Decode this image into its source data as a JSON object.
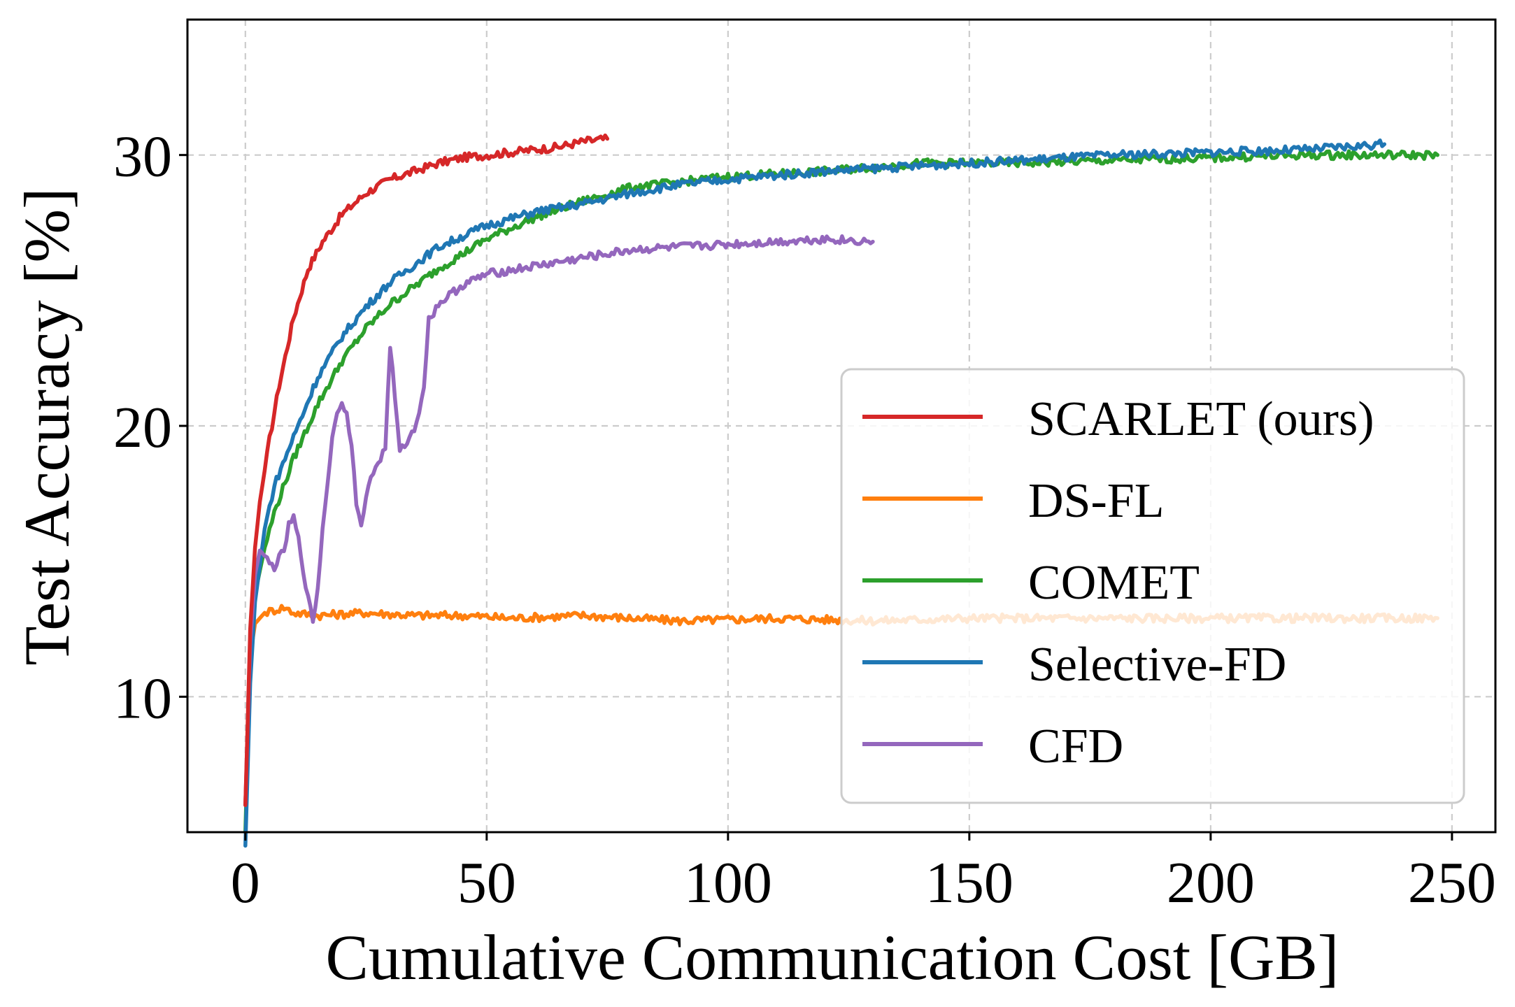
{
  "chart_data": {
    "type": "line",
    "xlabel": "Cumulative Communication Cost [GB]",
    "ylabel": "Test Accuracy [%]",
    "xlim": [
      -12,
      259
    ],
    "ylim": [
      5,
      35
    ],
    "xticks": [
      0,
      50,
      100,
      150,
      200,
      250
    ],
    "yticks": [
      10,
      20,
      30
    ],
    "grid": true,
    "legend": "lower-right",
    "series": [
      {
        "name": "SCARLET (ours)",
        "color": "#d62728",
        "x": [
          0,
          1,
          2,
          3,
          5,
          7,
          10,
          13,
          16,
          20,
          25,
          30,
          35,
          40,
          45,
          50,
          55,
          60,
          65,
          70,
          75
        ],
        "y": [
          6,
          12.5,
          15.5,
          17.2,
          19.5,
          21.5,
          24.0,
          25.8,
          26.8,
          27.8,
          28.6,
          29.1,
          29.4,
          29.7,
          29.9,
          30.0,
          30.1,
          30.2,
          30.3,
          30.5,
          30.6
        ]
      },
      {
        "name": "DS-FL",
        "color": "#ff7f0e",
        "x": [
          0,
          1,
          2,
          4,
          6,
          8,
          10,
          15,
          25,
          35,
          45,
          55,
          70,
          90,
          110,
          130,
          150,
          170,
          190,
          210,
          230,
          247
        ],
        "y": [
          6,
          11.5,
          12.7,
          13.1,
          13.2,
          13.3,
          13.1,
          13.0,
          13.1,
          13.0,
          13.0,
          12.9,
          13.0,
          12.8,
          12.9,
          12.8,
          12.9,
          12.9,
          12.9,
          12.9,
          12.9,
          12.9
        ]
      },
      {
        "name": "COMET",
        "color": "#2ca02c",
        "x": [
          0,
          1,
          2,
          4,
          6,
          10,
          15,
          20,
          25,
          30,
          40,
          50,
          60,
          70,
          80,
          90,
          100,
          120,
          140,
          160,
          180,
          200,
          220,
          235,
          247
        ],
        "y": [
          5,
          11.5,
          13.8,
          15.5,
          16.8,
          18.8,
          20.8,
          22.4,
          23.6,
          24.5,
          25.8,
          26.9,
          27.7,
          28.3,
          28.8,
          29.0,
          29.2,
          29.4,
          29.7,
          29.7,
          29.8,
          29.9,
          30.0,
          30.0,
          30.0
        ]
      },
      {
        "name": "Selective-FD",
        "color": "#1f77b4",
        "x": [
          0,
          1,
          2,
          4,
          6,
          10,
          15,
          20,
          25,
          30,
          40,
          50,
          60,
          70,
          80,
          90,
          100,
          120,
          140,
          160,
          180,
          200,
          220,
          236
        ],
        "y": [
          4.5,
          10.5,
          13.5,
          16.2,
          17.8,
          19.6,
          21.8,
          23.3,
          24.4,
          25.3,
          26.6,
          27.4,
          27.9,
          28.2,
          28.6,
          28.9,
          29.1,
          29.4,
          29.6,
          29.8,
          30.0,
          30.1,
          30.2,
          30.4
        ]
      },
      {
        "name": "CFD",
        "color": "#9467bd",
        "x": [
          0,
          1,
          2,
          3,
          4,
          5,
          6,
          8,
          9,
          10,
          11,
          12,
          13,
          14,
          15,
          16,
          17,
          18,
          19,
          20,
          21,
          22,
          23,
          24,
          25,
          26,
          27,
          28,
          29,
          30,
          31,
          32,
          33,
          34,
          35,
          36,
          37,
          38,
          40,
          45,
          50,
          60,
          70,
          80,
          90,
          100,
          110,
          120,
          130
        ],
        "y": [
          6,
          12.0,
          14.5,
          15.4,
          15.2,
          14.9,
          14.8,
          15.4,
          16.3,
          16.6,
          15.8,
          14.7,
          13.6,
          12.8,
          14.0,
          16.2,
          17.9,
          19.5,
          20.6,
          20.8,
          20.6,
          19.2,
          17.2,
          16.2,
          17.5,
          18.0,
          18.5,
          18.8,
          19.2,
          23.0,
          21.0,
          19.0,
          19.3,
          19.6,
          19.8,
          20.6,
          21.5,
          23.9,
          24.5,
          25.2,
          25.6,
          25.9,
          26.2,
          26.5,
          26.6,
          26.7,
          26.8,
          26.9,
          26.8
        ]
      }
    ]
  }
}
